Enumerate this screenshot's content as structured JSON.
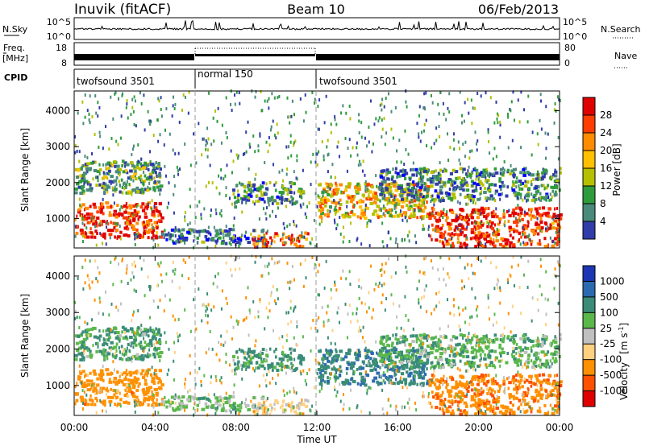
{
  "header": {
    "station": "Inuvik (fitACF)",
    "beam": "Beam 10",
    "date": "06/Feb/2013"
  },
  "strips": {
    "nsky_label": "N.Sky",
    "nsky_ticks": [
      "10^5",
      "10^0"
    ],
    "nsearch_label": "N.Search",
    "nsearch_ticks": [
      "10^5",
      "10^0"
    ],
    "freq_label_line1": "Freq.",
    "freq_label_line2": "[MHz]",
    "freq_ticks": [
      "18",
      "8"
    ],
    "nave_label": "Nave",
    "nave_ticks": [
      "80",
      "0"
    ],
    "cpid_label": "CPID",
    "cpid_segments": [
      {
        "text": "twofsound 3501",
        "start": 0,
        "end": 6
      },
      {
        "text": "normal 150",
        "start": 6,
        "end": 12
      },
      {
        "text": "twofsound 3501",
        "start": 12,
        "end": 24
      }
    ]
  },
  "time_axis": {
    "label": "Time UT",
    "ticks": [
      "00:00",
      "04:00",
      "08:00",
      "12:00",
      "16:00",
      "20:00",
      "00:00"
    ],
    "tick_hours": [
      0,
      4,
      8,
      12,
      16,
      20,
      24
    ],
    "range_hours": [
      0,
      24
    ],
    "mode_change_hours": [
      6,
      12
    ]
  },
  "range_axis": {
    "label": "Slant Range [km]",
    "ticks": [
      "4000",
      "3000",
      "2000",
      "1000"
    ],
    "tick_values": [
      4000,
      3000,
      2000,
      1000
    ],
    "range_km": [
      180,
      4550
    ]
  },
  "power_scale": {
    "title": "Power [dB]",
    "labels": [
      "28",
      "24",
      "20",
      "16",
      "12",
      "8",
      "4"
    ],
    "colors": [
      "#e00000",
      "#ff3d00",
      "#ff8c00",
      "#ffc000",
      "#b4c000",
      "#2e9c3c",
      "#4a8a7a",
      "#303ca8",
      "#0000ff"
    ]
  },
  "velocity_scale": {
    "title": "Velocity",
    "unit": "[m s",
    "unit_exponent": "-1",
    "unit_close": "]",
    "labels": [
      "1000",
      "500",
      "100",
      "25",
      "-25",
      "-100",
      "-500",
      "-1000"
    ],
    "colors": [
      "#1c36b4",
      "#2c6ab0",
      "#3a8c78",
      "#5ab84a",
      "#c0c0c0",
      "#ffd080",
      "#ff9000",
      "#ff5000",
      "#e00000"
    ]
  },
  "chart_data": {
    "type": "heatmap",
    "panels": [
      "power",
      "velocity"
    ],
    "x": "time UT (hours)",
    "y": "slant range (km)",
    "xlim": [
      0,
      24
    ],
    "ylim": [
      180,
      4550
    ],
    "scatter_regions": [
      {
        "t": [
          0,
          4.3
        ],
        "r": [
          450,
          1450
        ],
        "power_db": 28,
        "velocity": -300
      },
      {
        "t": [
          0,
          4.3
        ],
        "r": [
          1700,
          2600
        ],
        "power_db": 12,
        "velocity": 100
      },
      {
        "t": [
          4.3,
          9.5
        ],
        "r": [
          300,
          700
        ],
        "power_db": 8,
        "velocity": 50
      },
      {
        "t": [
          7.8,
          11.3
        ],
        "r": [
          1400,
          2000
        ],
        "power_db": 10,
        "velocity": 150
      },
      {
        "t": [
          8.8,
          11.5
        ],
        "r": [
          200,
          600
        ],
        "power_db": 26,
        "velocity": -40
      },
      {
        "t": [
          12,
          17.5
        ],
        "r": [
          1000,
          2000
        ],
        "power_db": 20,
        "velocity": 400
      },
      {
        "t": [
          17.5,
          24
        ],
        "r": [
          200,
          1300
        ],
        "power_db": 28,
        "velocity": -400
      },
      {
        "t": [
          15,
          24
        ],
        "r": [
          1500,
          2400
        ],
        "power_db": 10,
        "velocity": 80
      }
    ]
  }
}
